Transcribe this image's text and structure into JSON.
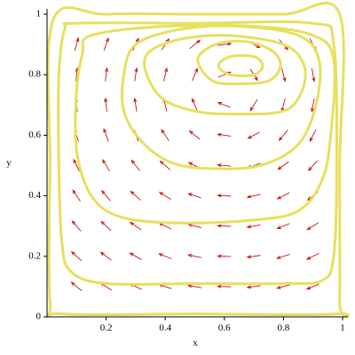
{
  "chart_data": {
    "type": "vector_field",
    "xlabel": "x",
    "ylabel": "y",
    "xlim": [
      0,
      1
    ],
    "ylim": [
      0,
      1
    ],
    "xticks": [
      0.2,
      0.4,
      0.6,
      0.8,
      1
    ],
    "yticks": [
      0,
      0.2,
      0.4,
      0.6,
      0.8,
      1
    ],
    "arrow_color": "#cc1111",
    "arrows": {
      "x": [
        0.1,
        0.2,
        0.3,
        0.4,
        0.5,
        0.6,
        0.7,
        0.8,
        0.9
      ],
      "y": [
        0.1,
        0.2,
        0.3,
        0.4,
        0.5,
        0.6,
        0.7,
        0.8,
        0.9
      ],
      "angle": [
        [
          141,
          147,
          154,
          161,
          170,
          178,
          187,
          195,
          203
        ],
        [
          137,
          143,
          150,
          158,
          168,
          178,
          188,
          198,
          207
        ],
        [
          131,
          137,
          145,
          154,
          165,
          177,
          190,
          202,
          212
        ],
        [
          124,
          130,
          138,
          148,
          161,
          177,
          193,
          207,
          219
        ],
        [
          116,
          121,
          128,
          139,
          154,
          175,
          198,
          216,
          228
        ],
        [
          106,
          110,
          115,
          124,
          141,
          172,
          208,
          230,
          242
        ],
        [
          96,
          97,
          99,
          103,
          113,
          158,
          238,
          255,
          260
        ],
        [
          84,
          83,
          81,
          77,
          67,
          22,
          -58,
          -75,
          -80
        ],
        [
          74,
          70,
          65,
          56,
          39,
          8,
          -28,
          -50,
          -62
        ]
      ]
    },
    "series": [
      {
        "color": "#e6e05e",
        "x": [
          0.02,
          0.2,
          0.5,
          0.8,
          0.99,
          0.99,
          0.99,
          0.98,
          0.5,
          0.05,
          0.01,
          0.01
        ],
        "y": [
          0.98,
          1,
          1,
          1,
          1,
          0.5,
          0.05,
          0.01,
          0.01,
          0.01,
          0.05,
          0.5
        ]
      },
      {
        "color": "#e6e05e",
        "x": [
          0.06,
          0.1,
          0.5,
          0.9,
          0.97,
          0.98,
          0.97,
          0.93,
          0.8,
          0.5,
          0.2,
          0.08,
          0.05,
          0.04,
          0.04
        ],
        "y": [
          0.95,
          0.97,
          0.97,
          0.97,
          0.9,
          0.5,
          0.2,
          0.12,
          0.11,
          0.11,
          0.11,
          0.15,
          0.25,
          0.5,
          0.8
        ]
      },
      {
        "color": "#e6e05e",
        "x": [
          0.15,
          0.4,
          0.7,
          0.9,
          0.97,
          0.96,
          0.93,
          0.85,
          0.7,
          0.45,
          0.25,
          0.15,
          0.1,
          0.1,
          0.12
        ],
        "y": [
          0.93,
          0.96,
          0.96,
          0.93,
          0.85,
          0.6,
          0.45,
          0.35,
          0.32,
          0.31,
          0.33,
          0.4,
          0.55,
          0.75,
          0.87
        ]
      },
      {
        "color": "#e6e05e",
        "x": [
          0.3,
          0.45,
          0.65,
          0.85,
          0.92,
          0.91,
          0.85,
          0.72,
          0.55,
          0.42,
          0.32,
          0.26,
          0.26
        ],
        "y": [
          0.9,
          0.95,
          0.96,
          0.93,
          0.85,
          0.7,
          0.57,
          0.5,
          0.49,
          0.51,
          0.58,
          0.68,
          0.8
        ]
      },
      {
        "color": "#e6e05e",
        "x": [
          0.33,
          0.42,
          0.6,
          0.8,
          0.87,
          0.86,
          0.8,
          0.65,
          0.5,
          0.38
        ],
        "y": [
          0.85,
          0.91,
          0.93,
          0.9,
          0.83,
          0.74,
          0.68,
          0.67,
          0.68,
          0.73
        ]
      },
      {
        "color": "#e6e05e",
        "x": [
          0.51,
          0.57,
          0.67,
          0.76,
          0.79,
          0.75,
          0.65,
          0.56
        ],
        "y": [
          0.85,
          0.9,
          0.91,
          0.88,
          0.83,
          0.78,
          0.77,
          0.78
        ]
      },
      {
        "color": "#e6e05e",
        "x": [
          0.58,
          0.62,
          0.7,
          0.73,
          0.7,
          0.62
        ],
        "y": [
          0.83,
          0.86,
          0.86,
          0.83,
          0.8,
          0.8
        ]
      }
    ]
  }
}
